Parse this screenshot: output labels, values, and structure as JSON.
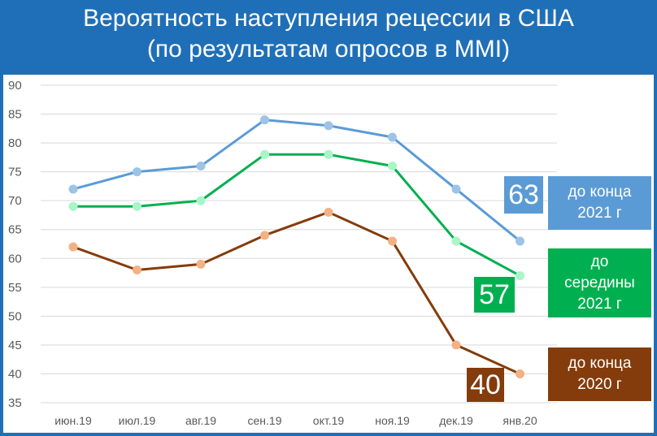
{
  "title": {
    "line1": "Вероятность наступления рецессии в США",
    "line2": "(по результатам опросов в MMI)"
  },
  "colors": {
    "header_bg": "#1f6fb8",
    "series_2021_end": "#5b9bd5",
    "series_2021_mid": "#00b050",
    "series_2020_end": "#843c0c",
    "marker_2021_end": "#9dc3e6",
    "marker_2021_mid": "#a9f5c6",
    "marker_2020_end": "#f4b183",
    "box_2021_end": "#5b9bd5",
    "box_2021_mid": "#00b050",
    "box_2020_end": "#843c0c"
  },
  "chart_data": {
    "type": "line",
    "categories": [
      "июн.19",
      "июл.19",
      "авг.19",
      "сен.19",
      "окт.19",
      "ноя.19",
      "дек.19",
      "янв.20"
    ],
    "ylim": [
      35,
      90
    ],
    "yticks": [
      35,
      40,
      45,
      50,
      55,
      60,
      65,
      70,
      75,
      80,
      85,
      90
    ],
    "grid": true,
    "series": [
      {
        "name": "до конца 2021 г",
        "values": [
          72,
          75,
          76,
          84,
          83,
          81,
          72,
          63
        ]
      },
      {
        "name": "до середины 2021 г",
        "values": [
          69,
          69,
          70,
          78,
          78,
          76,
          63,
          57
        ]
      },
      {
        "name": "до конца 2020 г",
        "values": [
          62,
          58,
          59,
          64,
          68,
          63,
          45,
          40
        ]
      }
    ]
  },
  "legend": {
    "end_2021": {
      "line1": "до конца",
      "line2": "2021 г"
    },
    "mid_2021": {
      "line1": "до",
      "line2": "середины",
      "line3": "2021 г"
    },
    "end_2020": {
      "line1": "до конца",
      "line2": "2020 г"
    }
  },
  "last_values": {
    "end_2021": "63",
    "mid_2021": "57",
    "end_2020": "40"
  }
}
